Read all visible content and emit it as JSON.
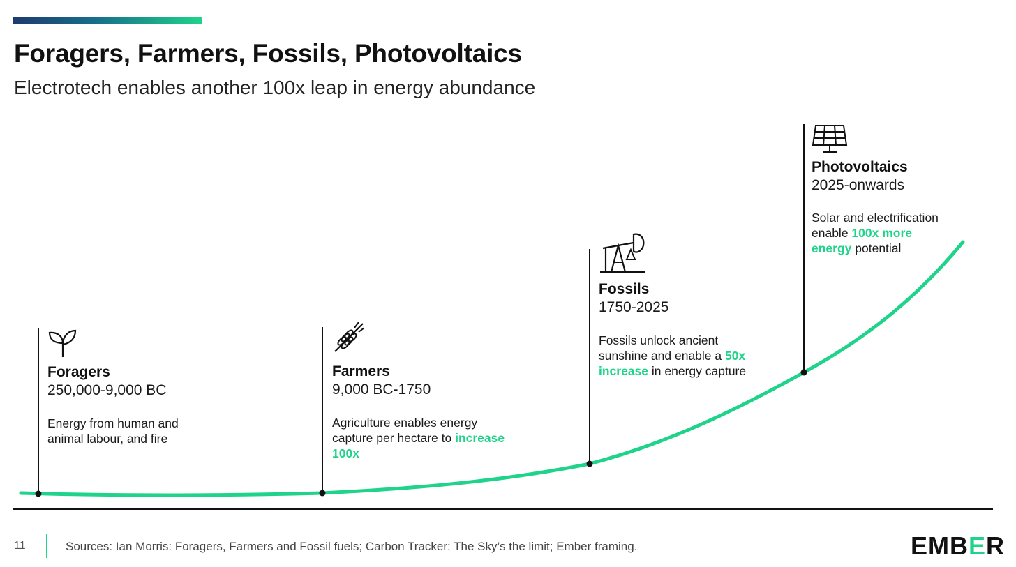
{
  "header": {
    "title": "Foragers, Farmers, Fossils, Photovoltaics",
    "subtitle": "Electrotech enables another 100x leap in energy abundance"
  },
  "colors": {
    "accent": "#1fd38a",
    "ink": "#111111",
    "bar_start": "#1e3a6e"
  },
  "eras": [
    {
      "icon": "sprout-icon",
      "name": "Foragers",
      "period": "250,000-9,000 BC",
      "desc_before": "Energy from human and animal labour, and fire",
      "desc_highlight": "",
      "desc_after": ""
    },
    {
      "icon": "wheat-icon",
      "name": "Farmers",
      "period": "9,000 BC-1750",
      "desc_before": "Agriculture enables energy capture per hectare to ",
      "desc_highlight": "increase 100x",
      "desc_after": ""
    },
    {
      "icon": "oil-pump-icon",
      "name": "Fossils",
      "period": "1750-2025",
      "desc_before": "Fossils unlock ancient sunshine and enable a ",
      "desc_highlight": "50x increase",
      "desc_after": " in energy capture"
    },
    {
      "icon": "solar-panel-icon",
      "name": "Photovoltaics",
      "period": "2025-onwards",
      "desc_before": "Solar and electrification enable ",
      "desc_highlight": "100x more energy",
      "desc_after": " potential"
    }
  ],
  "footer": {
    "page_number": "11",
    "sources": "Sources: Ian Morris: Foragers, Farmers and Fossil fuels; Carbon Tracker: The Sky’s the limit; Ember framing.",
    "logo_left": "EMB",
    "logo_mid": "E",
    "logo_right": "R"
  }
}
